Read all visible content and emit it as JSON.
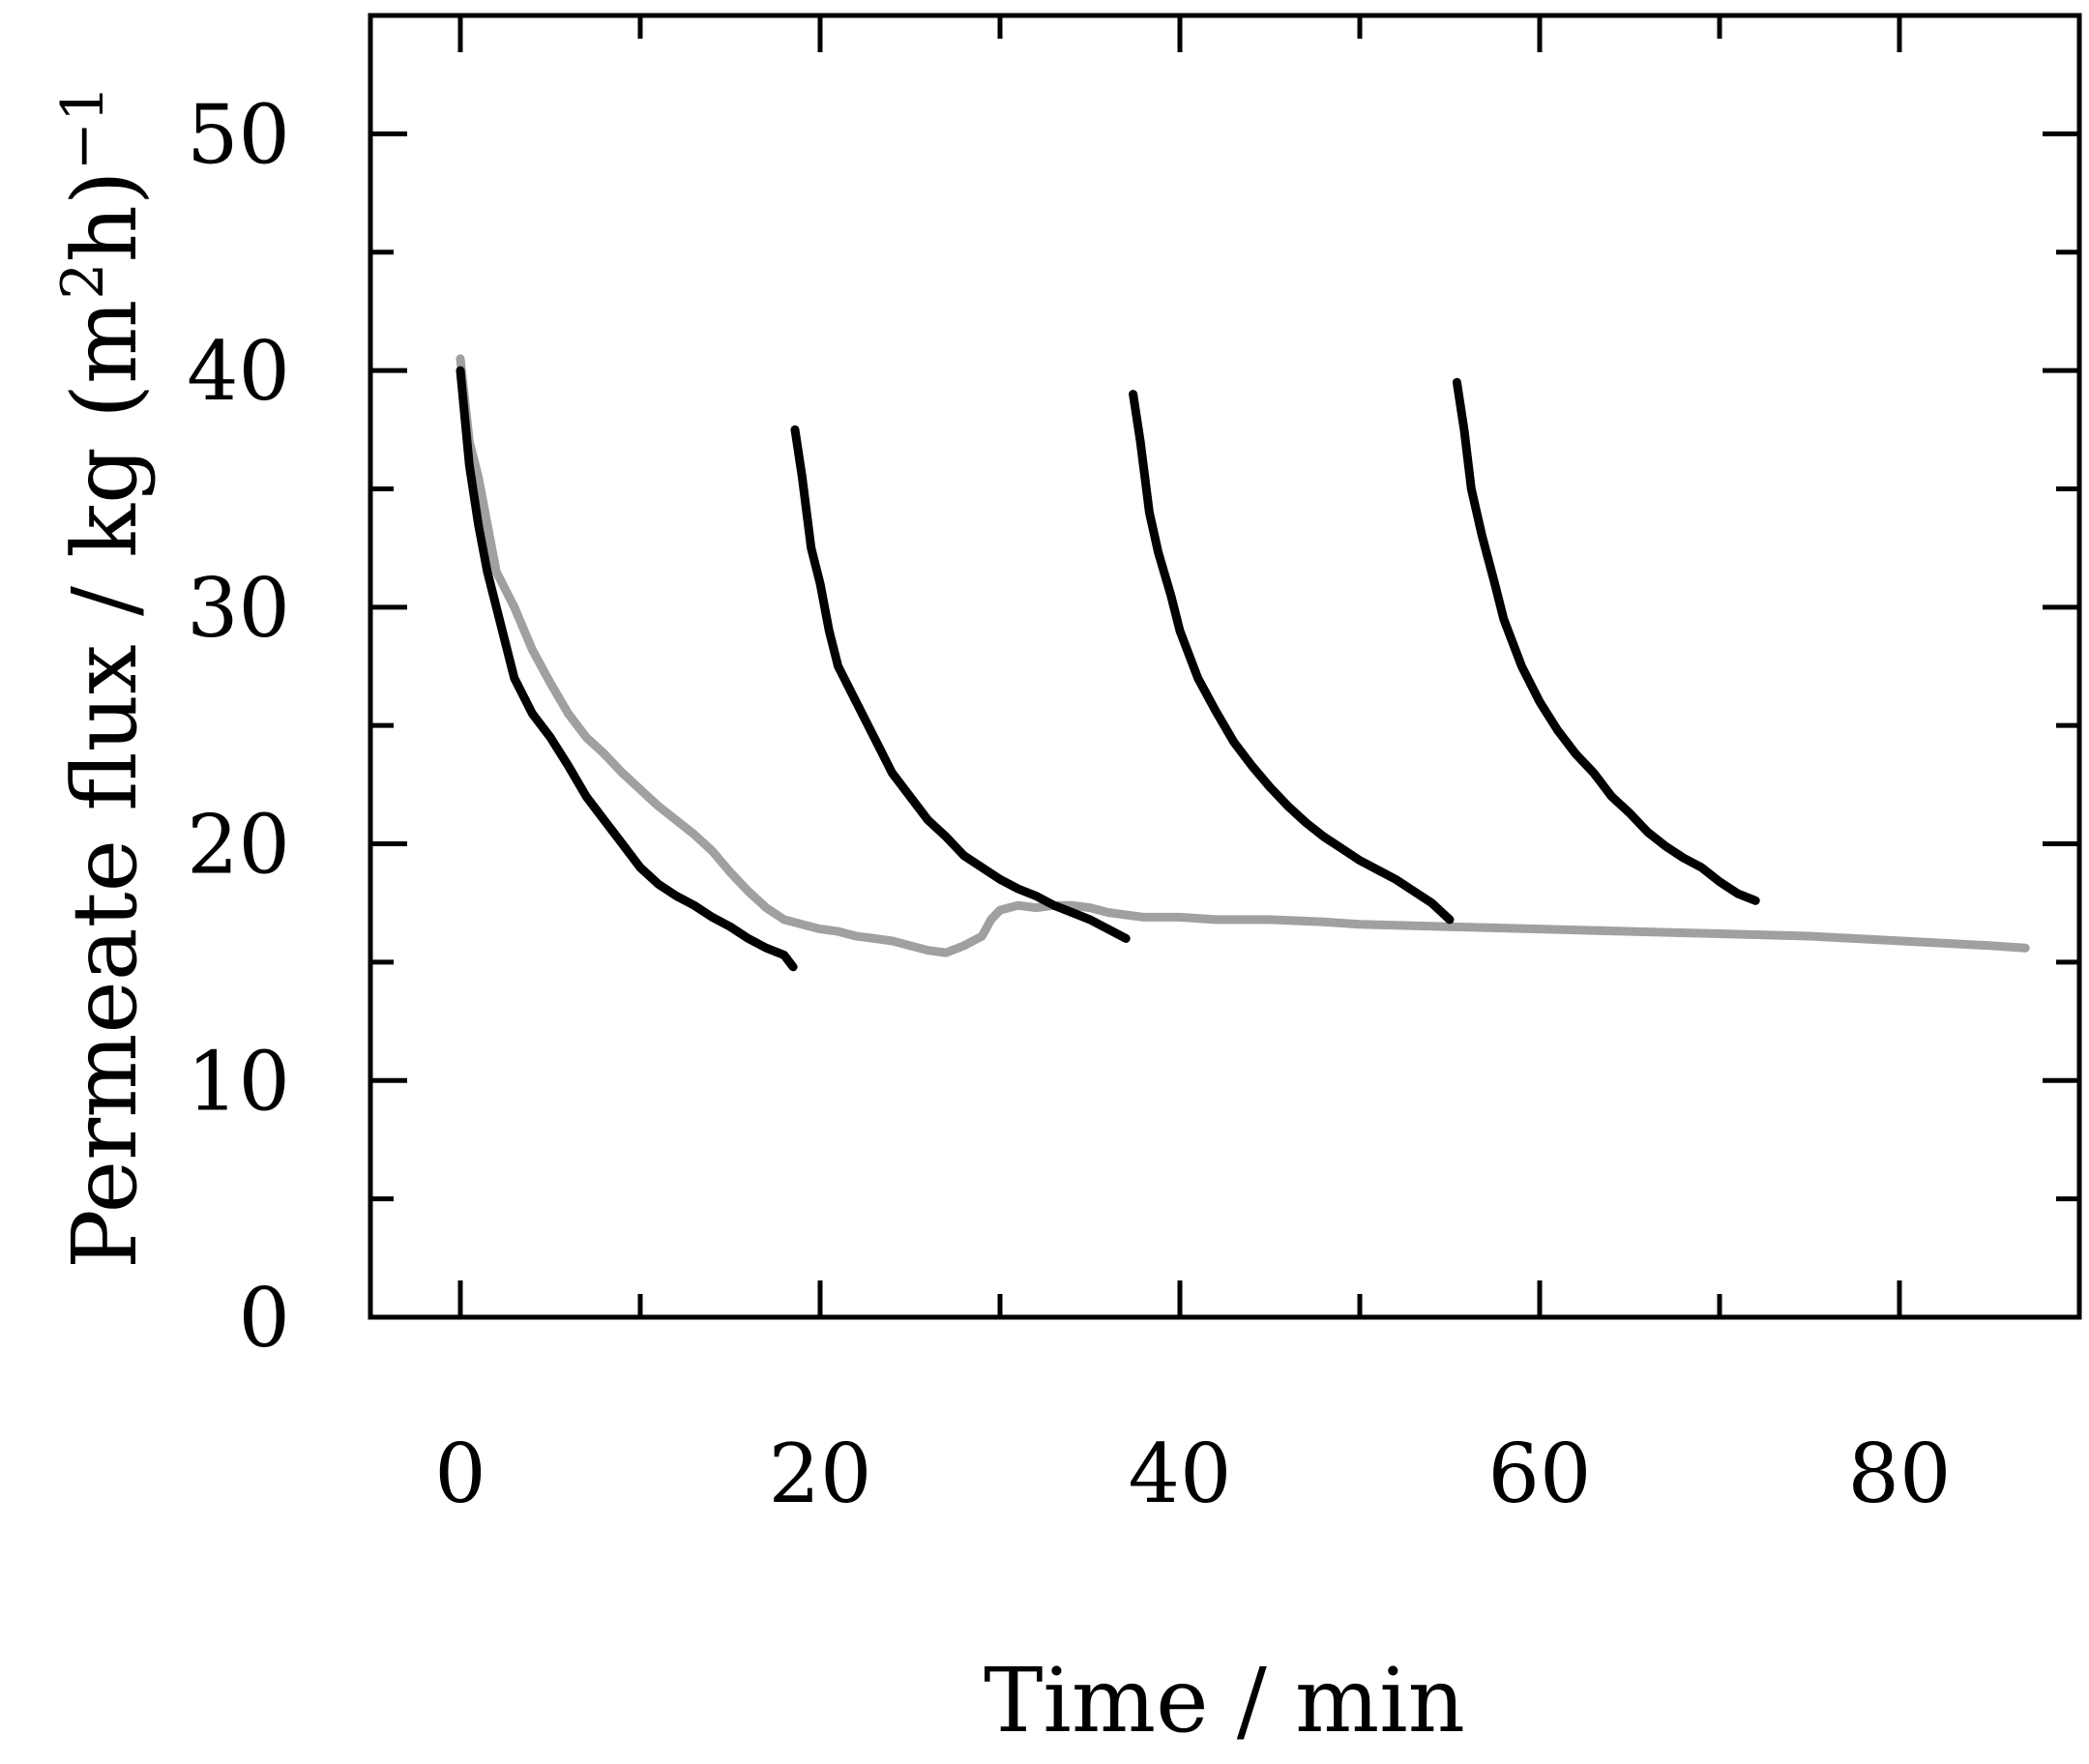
{
  "chart_data": {
    "type": "line",
    "xlabel": "Time / min",
    "ylabel_text": "Permeate flux / kg (m",
    "ylabel_sup1": "2",
    "ylabel_mid": "h)",
    "ylabel_sup2": "−1",
    "xlim": [
      -5,
      90
    ],
    "ylim": [
      0,
      55
    ],
    "x_ticks": [
      0,
      20,
      40,
      60,
      80
    ],
    "x_minor_ticks": [
      10,
      30,
      50,
      70,
      90
    ],
    "y_ticks": [
      0,
      10,
      20,
      30,
      40,
      50
    ],
    "y_minor_ticks": [
      5,
      15,
      25,
      35,
      45
    ],
    "grid": false,
    "colors": {
      "black_series": "#000000",
      "gray_series": "#a0a0a0",
      "axes": "#000000"
    },
    "series": [
      {
        "color": "#000000",
        "points": [
          [
            0,
            40
          ],
          [
            0.5,
            36
          ],
          [
            1,
            33.5
          ],
          [
            1.5,
            31.5
          ],
          [
            2,
            30
          ],
          [
            2.5,
            28.5
          ],
          [
            3,
            27
          ],
          [
            4,
            25.5
          ],
          [
            5,
            24.5
          ],
          [
            6,
            23.3
          ],
          [
            7,
            22
          ],
          [
            8,
            21
          ],
          [
            9,
            20
          ],
          [
            10,
            19
          ],
          [
            11,
            18.3
          ],
          [
            12,
            17.8
          ],
          [
            13,
            17.4
          ],
          [
            14,
            16.9
          ],
          [
            15,
            16.5
          ],
          [
            16,
            16
          ],
          [
            17,
            15.6
          ],
          [
            18,
            15.3
          ],
          [
            18.5,
            14.8
          ]
        ]
      },
      {
        "color": "#000000",
        "points": [
          [
            18.6,
            37.5
          ],
          [
            19,
            35.5
          ],
          [
            19.5,
            32.5
          ],
          [
            20,
            31
          ],
          [
            20.5,
            29
          ],
          [
            21,
            27.5
          ],
          [
            22,
            26
          ],
          [
            23,
            24.5
          ],
          [
            24,
            23
          ],
          [
            25,
            22
          ],
          [
            26,
            21
          ],
          [
            27,
            20.3
          ],
          [
            28,
            19.5
          ],
          [
            29,
            19
          ],
          [
            30,
            18.5
          ],
          [
            31,
            18.1
          ],
          [
            32,
            17.8
          ],
          [
            33,
            17.4
          ],
          [
            34,
            17.1
          ],
          [
            35,
            16.8
          ],
          [
            36,
            16.4
          ],
          [
            37,
            16
          ]
        ]
      },
      {
        "color": "#000000",
        "points": [
          [
            37.4,
            39
          ],
          [
            37.8,
            37
          ],
          [
            38.3,
            34
          ],
          [
            38.8,
            32.3
          ],
          [
            39.5,
            30.5
          ],
          [
            40,
            29
          ],
          [
            41,
            27
          ],
          [
            42,
            25.6
          ],
          [
            43,
            24.3
          ],
          [
            44,
            23.3
          ],
          [
            45,
            22.4
          ],
          [
            46,
            21.6
          ],
          [
            47,
            20.9
          ],
          [
            48,
            20.3
          ],
          [
            49,
            19.8
          ],
          [
            50,
            19.3
          ],
          [
            51,
            18.9
          ],
          [
            52,
            18.5
          ],
          [
            53,
            18
          ],
          [
            54,
            17.5
          ],
          [
            55,
            16.8
          ]
        ]
      },
      {
        "color": "#000000",
        "points": [
          [
            55.4,
            39.5
          ],
          [
            55.8,
            37.5
          ],
          [
            56.2,
            35
          ],
          [
            56.8,
            33
          ],
          [
            57.5,
            31
          ],
          [
            58,
            29.5
          ],
          [
            59,
            27.5
          ],
          [
            60,
            26
          ],
          [
            61,
            24.8
          ],
          [
            62,
            23.8
          ],
          [
            63,
            23
          ],
          [
            64,
            22
          ],
          [
            65,
            21.3
          ],
          [
            66,
            20.5
          ],
          [
            67,
            19.9
          ],
          [
            68,
            19.4
          ],
          [
            69,
            19
          ],
          [
            70,
            18.4
          ],
          [
            71,
            17.9
          ],
          [
            72,
            17.6
          ]
        ]
      },
      {
        "color": "#a0a0a0",
        "points": [
          [
            0,
            40.5
          ],
          [
            0.5,
            37
          ],
          [
            1,
            35.5
          ],
          [
            1.5,
            33.5
          ],
          [
            2,
            31.5
          ],
          [
            3,
            30
          ],
          [
            4,
            28.2
          ],
          [
            5,
            26.8
          ],
          [
            6,
            25.5
          ],
          [
            7,
            24.5
          ],
          [
            8,
            23.8
          ],
          [
            9,
            23
          ],
          [
            10,
            22.3
          ],
          [
            11,
            21.6
          ],
          [
            12,
            21
          ],
          [
            13,
            20.4
          ],
          [
            14,
            19.7
          ],
          [
            15,
            18.8
          ],
          [
            16,
            18
          ],
          [
            17,
            17.3
          ],
          [
            18,
            16.8
          ],
          [
            19,
            16.6
          ],
          [
            20,
            16.4
          ],
          [
            21,
            16.3
          ],
          [
            22,
            16.1
          ],
          [
            23,
            16
          ],
          [
            24,
            15.9
          ],
          [
            25,
            15.7
          ],
          [
            26,
            15.5
          ],
          [
            27,
            15.4
          ],
          [
            28,
            15.7
          ],
          [
            29,
            16.1
          ],
          [
            29.5,
            16.8
          ],
          [
            30,
            17.2
          ],
          [
            31,
            17.4
          ],
          [
            32,
            17.3
          ],
          [
            33,
            17.4
          ],
          [
            34,
            17.4
          ],
          [
            35,
            17.3
          ],
          [
            36,
            17.1
          ],
          [
            38,
            16.9
          ],
          [
            40,
            16.9
          ],
          [
            42,
            16.8
          ],
          [
            45,
            16.8
          ],
          [
            48,
            16.7
          ],
          [
            50,
            16.6
          ],
          [
            55,
            16.5
          ],
          [
            60,
            16.4
          ],
          [
            65,
            16.3
          ],
          [
            70,
            16.2
          ],
          [
            75,
            16.1
          ],
          [
            80,
            15.9
          ],
          [
            85,
            15.7
          ],
          [
            87,
            15.6
          ]
        ]
      }
    ]
  }
}
